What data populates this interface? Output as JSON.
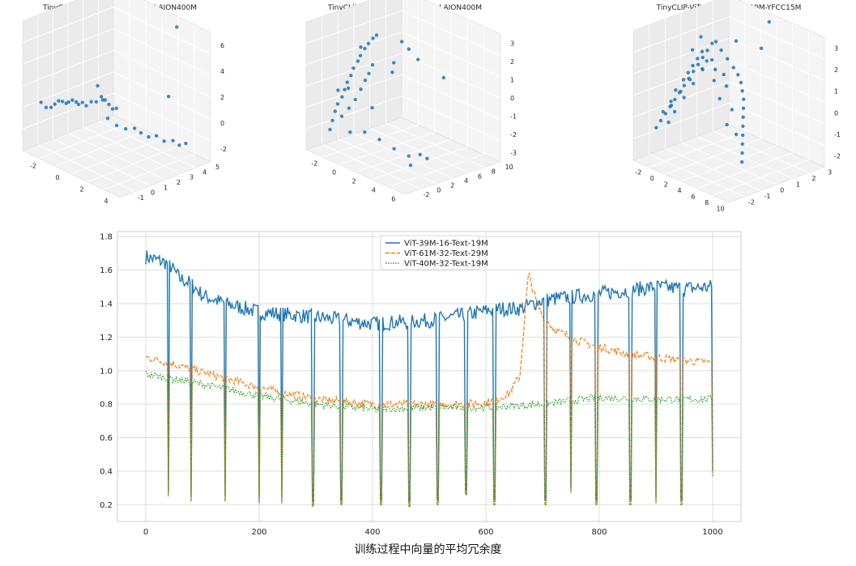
{
  "chart_data": [
    {
      "type": "scatter",
      "dimensions": 3,
      "title": "TinyCLIP-ViT-40M-32-Text-19M-LAION400M",
      "color": "#1f77b4",
      "x_ticks": [
        "-2",
        "0",
        "2",
        "4"
      ],
      "y_ticks": [
        "-1",
        "0",
        "1",
        "2",
        "3",
        "4",
        "5"
      ],
      "z_ticks": [
        "-2",
        "0",
        "2",
        "4",
        "6"
      ],
      "points_xyz": [
        [
          -2.6,
          -0.5,
          0.5
        ],
        [
          -2.3,
          -0.4,
          0.2
        ],
        [
          -2.0,
          -0.3,
          0.3
        ],
        [
          -1.8,
          -0.2,
          0.6
        ],
        [
          -1.6,
          -0.1,
          0.9
        ],
        [
          -1.4,
          0,
          0.9
        ],
        [
          -1.2,
          0.1,
          0.8
        ],
        [
          -1.0,
          0.1,
          1.0
        ],
        [
          -0.8,
          0.2,
          1.2
        ],
        [
          -0.6,
          0.3,
          1.1
        ],
        [
          -0.4,
          0.3,
          1.0
        ],
        [
          -0.2,
          0.4,
          1.2
        ],
        [
          0,
          0.5,
          1.0
        ],
        [
          0.3,
          0.6,
          1.4
        ],
        [
          0.6,
          0.7,
          1.5
        ],
        [
          0.8,
          0.9,
          1.9
        ],
        [
          1.0,
          1.0,
          1.7
        ],
        [
          1.2,
          1.1,
          1.4
        ],
        [
          1.4,
          1.2,
          1.1
        ],
        [
          1.6,
          1.3,
          1.2
        ],
        [
          0.5,
          0.9,
          2.6
        ],
        [
          0.8,
          1.0,
          1.6
        ],
        [
          1.0,
          1.2,
          0.2
        ],
        [
          1.4,
          1.5,
          -0.3
        ],
        [
          1.8,
          1.8,
          -0.5
        ],
        [
          2.2,
          2.1,
          -0.4
        ],
        [
          2.5,
          2.3,
          -0.7
        ],
        [
          2.8,
          2.6,
          -1.0
        ],
        [
          3.1,
          2.9,
          -0.9
        ],
        [
          3.4,
          3.2,
          -1.3
        ],
        [
          3.8,
          3.5,
          -1.2
        ],
        [
          4.1,
          3.7,
          -1.5
        ],
        [
          4.3,
          4.0,
          -1.4
        ],
        [
          3.0,
          4.5,
          6.8
        ],
        [
          4.0,
          3.0,
          2.5
        ]
      ]
    },
    {
      "type": "scatter",
      "dimensions": 3,
      "title": "TinyCLIP-ViT-61M-32-Text-29M-LAION400M",
      "color": "#1f77b4",
      "x_ticks": [
        "-2",
        "0",
        "2",
        "4",
        "6"
      ],
      "y_ticks": [
        "-2",
        "0",
        "2",
        "4",
        "6",
        "8",
        "10"
      ],
      "z_ticks": [
        "-3",
        "-2",
        "-1",
        "0",
        "1",
        "2",
        "3"
      ],
      "points_xyz": [
        [
          -2.0,
          0,
          -2.6
        ],
        [
          -1.9,
          0.2,
          -2.1
        ],
        [
          -1.8,
          0.4,
          -1.6
        ],
        [
          -1.7,
          0.6,
          -1.2
        ],
        [
          -1.5,
          0.9,
          -0.8
        ],
        [
          -1.4,
          1.1,
          -0.4
        ],
        [
          -1.3,
          1.3,
          0
        ],
        [
          -1.1,
          1.5,
          0.4
        ],
        [
          -1.0,
          1.7,
          0.8
        ],
        [
          -0.8,
          2.0,
          1.2
        ],
        [
          -0.7,
          2.2,
          1.5
        ],
        [
          -0.5,
          2.5,
          1.9
        ],
        [
          -0.3,
          2.7,
          2.2
        ],
        [
          -0.1,
          3.0,
          2.5
        ],
        [
          0.1,
          3.2,
          2.7
        ],
        [
          -1.6,
          1.0,
          -1.9
        ],
        [
          -1.2,
          1.4,
          -1.4
        ],
        [
          -0.9,
          1.8,
          -0.9
        ],
        [
          -0.6,
          2.1,
          -0.3
        ],
        [
          -0.4,
          2.4,
          0.2
        ],
        [
          -0.2,
          2.6,
          0.6
        ],
        [
          0,
          2.8,
          1.1
        ],
        [
          -0.5,
          0.5,
          -2.4
        ],
        [
          0.5,
          1.0,
          -2.2
        ],
        [
          1.5,
          1.5,
          -2.4
        ],
        [
          2.5,
          2.0,
          -2.7
        ],
        [
          3.5,
          2.5,
          -2.9
        ],
        [
          4.2,
          3.0,
          -2.7
        ],
        [
          4.5,
          3.5,
          -2.9
        ],
        [
          4.0,
          2.0,
          -3.2
        ],
        [
          2.0,
          6.0,
          1.5
        ],
        [
          1.5,
          5.5,
          2.0
        ],
        [
          0.8,
          4.5,
          1.2
        ],
        [
          1.2,
          5.0,
          2.4
        ],
        [
          3.0,
          8.0,
          0.5
        ],
        [
          1.0,
          4.0,
          0.8
        ],
        [
          -1.0,
          1.0,
          -0.2
        ],
        [
          -1.8,
          0.8,
          -0.5
        ],
        [
          -0.2,
          1.5,
          2.2
        ],
        [
          0.5,
          2.0,
          -1.0
        ]
      ]
    },
    {
      "type": "scatter",
      "dimensions": 3,
      "title": "TinyCLIP-ViT-39M-16-Text-19M-YFCC15M",
      "color": "#1f77b4",
      "x_ticks": [
        "-2",
        "0",
        "2",
        "4",
        "6",
        "8",
        "10"
      ],
      "y_ticks": [
        "-2",
        "-1",
        "0",
        "1",
        "2",
        "3"
      ],
      "z_ticks": [
        "-2",
        "-1",
        "0",
        "1",
        "2",
        "3"
      ],
      "points_xyz": [
        [
          -2.2,
          -1.2,
          -1.3
        ],
        [
          -2.0,
          -1.0,
          -1.0
        ],
        [
          -1.8,
          -0.8,
          -0.7
        ],
        [
          -1.6,
          -0.6,
          -0.4
        ],
        [
          -1.4,
          -0.4,
          -0.1
        ],
        [
          -1.2,
          -0.2,
          0.2
        ],
        [
          -1.0,
          0,
          0.5
        ],
        [
          -0.8,
          0.2,
          0.8
        ],
        [
          -0.6,
          0.4,
          1.1
        ],
        [
          -0.4,
          0.6,
          1.4
        ],
        [
          -0.2,
          0.8,
          1.7
        ],
        [
          0,
          1.0,
          2.0
        ],
        [
          0.2,
          1.2,
          2.3
        ],
        [
          -1.9,
          -0.9,
          -0.6
        ],
        [
          -1.7,
          -0.5,
          -0.2
        ],
        [
          -1.5,
          -0.3,
          0.3
        ],
        [
          -1.3,
          0.1,
          0.7
        ],
        [
          -1.1,
          0.3,
          1.0
        ],
        [
          -0.9,
          0.5,
          1.3
        ],
        [
          -0.7,
          0.7,
          1.6
        ],
        [
          -0.5,
          0.9,
          1.9
        ],
        [
          -1.6,
          -0.7,
          -1.1
        ],
        [
          -1.2,
          -0.5,
          -0.6
        ],
        [
          -0.8,
          -0.1,
          0
        ],
        [
          -0.4,
          0.3,
          0.6
        ],
        [
          0,
          0.7,
          1.2
        ],
        [
          0.4,
          1.1,
          1.6
        ],
        [
          0.8,
          1.5,
          2.0
        ],
        [
          1.2,
          1.7,
          1.6
        ],
        [
          1.6,
          1.9,
          1.2
        ],
        [
          2.0,
          2.0,
          0.9
        ],
        [
          2.4,
          2.0,
          0.6
        ],
        [
          2.8,
          1.9,
          0.3
        ],
        [
          3.2,
          1.8,
          0
        ],
        [
          3.6,
          1.6,
          -0.3
        ],
        [
          4.0,
          1.4,
          -0.6
        ],
        [
          4.4,
          1.2,
          -0.9
        ],
        [
          4.8,
          1.0,
          -1.2
        ],
        [
          5.2,
          0.8,
          -1.5
        ],
        [
          5.6,
          0.6,
          -1.8
        ],
        [
          6.0,
          0.4,
          -2.1
        ],
        [
          1.0,
          0.5,
          1.8
        ],
        [
          1.5,
          0.8,
          1.4
        ],
        [
          2.2,
          0.4,
          1.1
        ],
        [
          2.8,
          0.9,
          0.8
        ],
        [
          3.4,
          0.2,
          0.5
        ],
        [
          4.2,
          0.6,
          0
        ],
        [
          4.6,
          0.1,
          -0.5
        ],
        [
          5.0,
          0.5,
          -1.0
        ],
        [
          0.5,
          1.3,
          2.4
        ],
        [
          0.2,
          0.5,
          2.8
        ],
        [
          -0.3,
          0.2,
          2.2
        ],
        [
          1.3,
          2.2,
          2.3
        ],
        [
          3.0,
          3.0,
          2.0
        ],
        [
          4.5,
          2.8,
          3.5
        ],
        [
          -1.0,
          -0.8,
          -0.2
        ],
        [
          -0.6,
          -0.4,
          0.4
        ],
        [
          -0.2,
          0,
          0.9
        ],
        [
          0.6,
          0.4,
          1.4
        ],
        [
          1.8,
          1.2,
          1.1
        ]
      ]
    },
    {
      "type": "line",
      "x_ticks": [
        "0",
        "200",
        "400",
        "600",
        "800",
        "1000"
      ],
      "y_ticks": [
        "0.2",
        "0.4",
        "0.6",
        "0.8",
        "1.0",
        "1.2",
        "1.4",
        "1.6",
        "1.8"
      ],
      "xlim": [
        -50,
        1050
      ],
      "ylim": [
        0.1,
        1.83
      ],
      "grid": true,
      "legend_position": "top-center",
      "drop_indices": [
        40,
        80,
        140,
        200,
        240,
        295,
        345,
        415,
        465,
        515,
        565,
        615,
        705,
        750,
        795,
        855,
        900,
        945,
        1000
      ],
      "drop_values": [
        0.25,
        0.22,
        0.22,
        0.21,
        0.21,
        0.19,
        0.2,
        0.2,
        0.19,
        0.2,
        0.26,
        0.2,
        0.2,
        0.27,
        0.2,
        0.2,
        0.21,
        0.2,
        0.37
      ],
      "series": [
        {
          "name": "ViT-39M-16-Text-19M",
          "color": "#1f77b4",
          "style": "solid",
          "x": [
            0,
            20,
            40,
            60,
            80,
            100,
            140,
            200,
            300,
            400,
            500,
            560,
            620,
            660,
            700,
            750,
            800,
            850,
            900,
            950,
            1000
          ],
          "y": [
            1.68,
            1.66,
            1.64,
            1.55,
            1.52,
            1.45,
            1.4,
            1.35,
            1.32,
            1.28,
            1.3,
            1.33,
            1.37,
            1.37,
            1.42,
            1.44,
            1.46,
            1.48,
            1.5,
            1.49,
            1.5
          ]
        },
        {
          "name": "ViT-61M-32-Text-29M",
          "color": "#ff7f0e",
          "style": "dashed",
          "x": [
            0,
            50,
            100,
            200,
            300,
            400,
            500,
            560,
            600,
            620,
            640,
            660,
            675,
            690,
            700,
            720,
            760,
            800,
            850,
            900,
            950,
            1000
          ],
          "y": [
            1.08,
            1.04,
            0.99,
            0.9,
            0.83,
            0.8,
            0.8,
            0.8,
            0.81,
            0.83,
            0.86,
            0.97,
            1.58,
            1.4,
            1.33,
            1.25,
            1.18,
            1.14,
            1.1,
            1.08,
            1.06,
            1.05
          ]
        },
        {
          "name": "ViT-40M-32-Text-19M",
          "color": "#2ca02c",
          "style": "dotted",
          "x": [
            0,
            50,
            100,
            200,
            300,
            400,
            500,
            600,
            700,
            800,
            900,
            1000
          ],
          "y": [
            0.98,
            0.95,
            0.92,
            0.85,
            0.8,
            0.77,
            0.78,
            0.78,
            0.8,
            0.84,
            0.83,
            0.83
          ]
        }
      ]
    }
  ],
  "caption": "训练过程中向量的平均冗余度"
}
